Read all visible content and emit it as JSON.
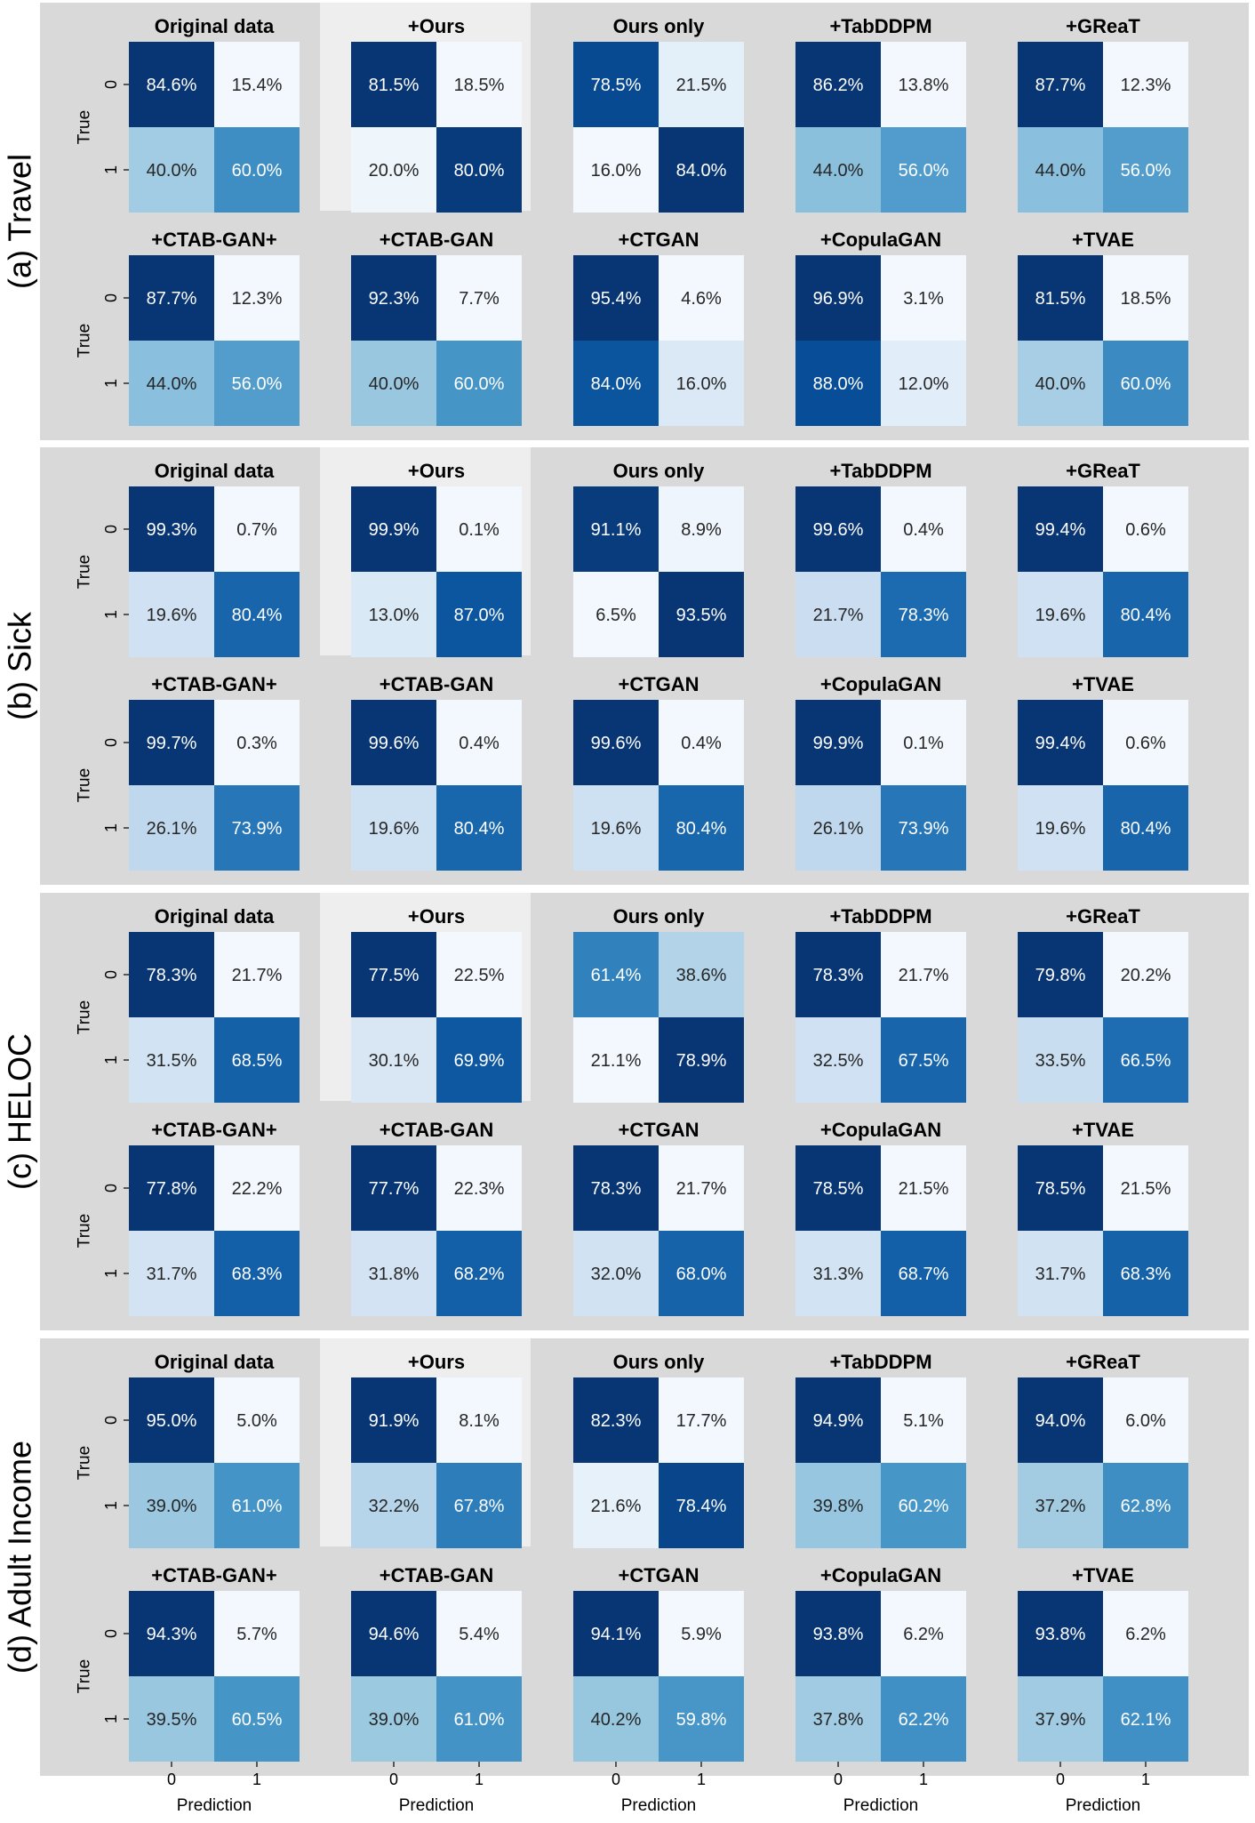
{
  "figure": {
    "axis_y_label": "True",
    "axis_x_label": "Prediction",
    "tick_labels": [
      "0",
      "1"
    ],
    "highlight_color": "#eeeeee",
    "panel_background": "#d9d9d9",
    "colormap": "Blues"
  },
  "chart_data": [
    {
      "type": "heatmap",
      "title": "(a) Travel",
      "subplots": [
        {
          "title": "Original data",
          "values": [
            [
              84.6,
              15.4
            ],
            [
              40.0,
              60.0
            ]
          ],
          "highlight": false
        },
        {
          "title": "+Ours",
          "values": [
            [
              81.5,
              18.5
            ],
            [
              20.0,
              80.0
            ]
          ],
          "highlight": true
        },
        {
          "title": "Ours only",
          "values": [
            [
              78.5,
              21.5
            ],
            [
              16.0,
              84.0
            ]
          ],
          "highlight": false
        },
        {
          "title": "+TabDDPM",
          "values": [
            [
              86.2,
              13.8
            ],
            [
              44.0,
              56.0
            ]
          ],
          "highlight": false
        },
        {
          "title": "+GReaT",
          "values": [
            [
              87.7,
              12.3
            ],
            [
              44.0,
              56.0
            ]
          ],
          "highlight": false
        },
        {
          "title": "+CTAB-GAN+",
          "values": [
            [
              87.7,
              12.3
            ],
            [
              44.0,
              56.0
            ]
          ],
          "highlight": false
        },
        {
          "title": "+CTAB-GAN",
          "values": [
            [
              92.3,
              7.7
            ],
            [
              40.0,
              60.0
            ]
          ],
          "highlight": false
        },
        {
          "title": "+CTGAN",
          "values": [
            [
              95.4,
              4.6
            ],
            [
              84.0,
              16.0
            ]
          ],
          "highlight": false
        },
        {
          "title": "+CopulaGAN",
          "values": [
            [
              96.9,
              3.1
            ],
            [
              88.0,
              12.0
            ]
          ],
          "highlight": false
        },
        {
          "title": "+TVAE",
          "values": [
            [
              81.5,
              18.5
            ],
            [
              40.0,
              60.0
            ]
          ],
          "highlight": false
        }
      ]
    },
    {
      "type": "heatmap",
      "title": "(b) Sick",
      "subplots": [
        {
          "title": "Original data",
          "values": [
            [
              99.3,
              0.7
            ],
            [
              19.6,
              80.4
            ]
          ],
          "highlight": false
        },
        {
          "title": "+Ours",
          "values": [
            [
              99.9,
              0.1
            ],
            [
              13.0,
              87.0
            ]
          ],
          "highlight": true
        },
        {
          "title": "Ours only",
          "values": [
            [
              91.1,
              8.9
            ],
            [
              6.5,
              93.5
            ]
          ],
          "highlight": false
        },
        {
          "title": "+TabDDPM",
          "values": [
            [
              99.6,
              0.4
            ],
            [
              21.7,
              78.3
            ]
          ],
          "highlight": false
        },
        {
          "title": "+GReaT",
          "values": [
            [
              99.4,
              0.6
            ],
            [
              19.6,
              80.4
            ]
          ],
          "highlight": false
        },
        {
          "title": "+CTAB-GAN+",
          "values": [
            [
              99.7,
              0.3
            ],
            [
              26.1,
              73.9
            ]
          ],
          "highlight": false
        },
        {
          "title": "+CTAB-GAN",
          "values": [
            [
              99.6,
              0.4
            ],
            [
              19.6,
              80.4
            ]
          ],
          "highlight": false
        },
        {
          "title": "+CTGAN",
          "values": [
            [
              99.6,
              0.4
            ],
            [
              19.6,
              80.4
            ]
          ],
          "highlight": false
        },
        {
          "title": "+CopulaGAN",
          "values": [
            [
              99.9,
              0.1
            ],
            [
              26.1,
              73.9
            ]
          ],
          "highlight": false
        },
        {
          "title": "+TVAE",
          "values": [
            [
              99.4,
              0.6
            ],
            [
              19.6,
              80.4
            ]
          ],
          "highlight": false
        }
      ]
    },
    {
      "type": "heatmap",
      "title": "(c) HELOC",
      "subplots": [
        {
          "title": "Original data",
          "values": [
            [
              78.3,
              21.7
            ],
            [
              31.5,
              68.5
            ]
          ],
          "highlight": false
        },
        {
          "title": "+Ours",
          "values": [
            [
              77.5,
              22.5
            ],
            [
              30.1,
              69.9
            ]
          ],
          "highlight": true
        },
        {
          "title": "Ours only",
          "values": [
            [
              61.4,
              38.6
            ],
            [
              21.1,
              78.9
            ]
          ],
          "highlight": false
        },
        {
          "title": "+TabDDPM",
          "values": [
            [
              78.3,
              21.7
            ],
            [
              32.5,
              67.5
            ]
          ],
          "highlight": false
        },
        {
          "title": "+GReaT",
          "values": [
            [
              79.8,
              20.2
            ],
            [
              33.5,
              66.5
            ]
          ],
          "highlight": false
        },
        {
          "title": "+CTAB-GAN+",
          "values": [
            [
              77.8,
              22.2
            ],
            [
              31.7,
              68.3
            ]
          ],
          "highlight": false
        },
        {
          "title": "+CTAB-GAN",
          "values": [
            [
              77.7,
              22.3
            ],
            [
              31.8,
              68.2
            ]
          ],
          "highlight": false
        },
        {
          "title": "+CTGAN",
          "values": [
            [
              78.3,
              21.7
            ],
            [
              32.0,
              68.0
            ]
          ],
          "highlight": false
        },
        {
          "title": "+CopulaGAN",
          "values": [
            [
              78.5,
              21.5
            ],
            [
              31.3,
              68.7
            ]
          ],
          "highlight": false
        },
        {
          "title": "+TVAE",
          "values": [
            [
              78.5,
              21.5
            ],
            [
              31.7,
              68.3
            ]
          ],
          "highlight": false
        }
      ]
    },
    {
      "type": "heatmap",
      "title": "(d) Adult Income",
      "subplots": [
        {
          "title": "Original data",
          "values": [
            [
              95.0,
              5.0
            ],
            [
              39.0,
              61.0
            ]
          ],
          "highlight": false
        },
        {
          "title": "+Ours",
          "values": [
            [
              91.9,
              8.1
            ],
            [
              32.2,
              67.8
            ]
          ],
          "highlight": true
        },
        {
          "title": "Ours only",
          "values": [
            [
              82.3,
              17.7
            ],
            [
              21.6,
              78.4
            ]
          ],
          "highlight": false
        },
        {
          "title": "+TabDDPM",
          "values": [
            [
              94.9,
              5.1
            ],
            [
              39.8,
              60.2
            ]
          ],
          "highlight": false
        },
        {
          "title": "+GReaT",
          "values": [
            [
              94.0,
              6.0
            ],
            [
              37.2,
              62.8
            ]
          ],
          "highlight": false
        },
        {
          "title": "+CTAB-GAN+",
          "values": [
            [
              94.3,
              5.7
            ],
            [
              39.5,
              60.5
            ]
          ],
          "highlight": false
        },
        {
          "title": "+CTAB-GAN",
          "values": [
            [
              94.6,
              5.4
            ],
            [
              39.0,
              61.0
            ]
          ],
          "highlight": false
        },
        {
          "title": "+CTGAN",
          "values": [
            [
              94.1,
              5.9
            ],
            [
              40.2,
              59.8
            ]
          ],
          "highlight": false
        },
        {
          "title": "+CopulaGAN",
          "values": [
            [
              93.8,
              6.2
            ],
            [
              37.8,
              62.2
            ]
          ],
          "highlight": false
        },
        {
          "title": "+TVAE",
          "values": [
            [
              93.8,
              6.2
            ],
            [
              37.9,
              62.1
            ]
          ],
          "highlight": false
        }
      ]
    }
  ]
}
